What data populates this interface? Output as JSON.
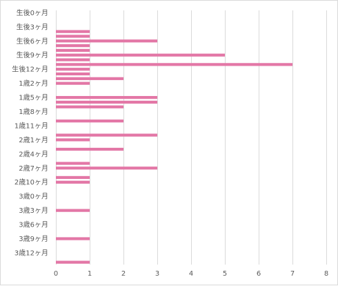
{
  "chart_data": {
    "type": "bar",
    "orientation": "horizontal",
    "title": "",
    "xlabel": "",
    "ylabel": "",
    "xlim": [
      0,
      8
    ],
    "x_ticks": [
      "0",
      "1",
      "2",
      "3",
      "4",
      "5",
      "6",
      "7",
      "8"
    ],
    "grid": true,
    "legend": "none",
    "bar_color": "#e377a6",
    "categories": [
      "生後0ヶ月",
      "",
      "",
      "生後3ヶ月",
      "",
      "",
      "生後6ヶ月",
      "",
      "",
      "生後9ヶ月",
      "",
      "",
      "生後12ヶ月",
      "",
      "",
      "1歳2ヶ月",
      "",
      "",
      "1歳5ヶ月",
      "",
      "",
      "1歳8ヶ月",
      "",
      "",
      "1歳11ヶ月",
      "",
      "",
      "2歳1ヶ月",
      "",
      "",
      "2歳4ヶ月",
      "",
      "",
      "2歳7ヶ月",
      "",
      "",
      "2歳10ヶ月",
      "",
      "",
      "3歳0ヶ月",
      "",
      "",
      "3歳3ヶ月",
      "",
      "",
      "3歳6ヶ月",
      "",
      "",
      "3歳9ヶ月",
      "",
      "",
      "3歳12ヶ月",
      "",
      ""
    ],
    "values": [
      0,
      0,
      0,
      0,
      1,
      1,
      3,
      1,
      1,
      5,
      1,
      7,
      1,
      1,
      2,
      1,
      0,
      0,
      3,
      3,
      2,
      0,
      0,
      2,
      0,
      0,
      3,
      1,
      0,
      2,
      0,
      0,
      1,
      3,
      0,
      1,
      1,
      0,
      0,
      0,
      0,
      0,
      1,
      0,
      0,
      0,
      0,
      0,
      1,
      0,
      0,
      0,
      0,
      1
    ]
  }
}
